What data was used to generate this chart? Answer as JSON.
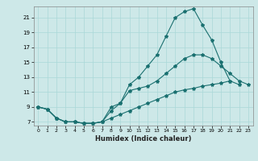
{
  "xlabel": "Humidex (Indice chaleur)",
  "bg_color": "#cde8e8",
  "line_color": "#1a7070",
  "xlim": [
    -0.5,
    23.5
  ],
  "ylim": [
    6.5,
    22.5
  ],
  "xticks": [
    0,
    1,
    2,
    3,
    4,
    5,
    6,
    7,
    8,
    9,
    10,
    11,
    12,
    13,
    14,
    15,
    16,
    17,
    18,
    19,
    20,
    21,
    22,
    23
  ],
  "yticks": [
    7,
    9,
    11,
    13,
    15,
    17,
    19,
    21
  ],
  "line1_x": [
    0,
    1,
    2,
    3,
    4,
    5,
    6,
    7,
    8,
    9,
    10,
    11,
    12,
    13,
    14,
    15,
    16,
    17,
    18,
    19,
    20,
    21,
    22,
    23
  ],
  "line1_y": [
    9.0,
    8.7,
    7.5,
    7.0,
    7.0,
    6.8,
    6.8,
    7.0,
    9.0,
    9.5,
    12.0,
    13.0,
    14.5,
    16.0,
    18.5,
    21.0,
    21.8,
    22.2,
    20.0,
    18.0,
    15.0,
    12.5,
    12.0,
    null
  ],
  "line2_x": [
    0,
    1,
    2,
    3,
    4,
    5,
    6,
    7,
    8,
    9,
    10,
    11,
    12,
    13,
    14,
    15,
    16,
    17,
    18,
    19,
    20,
    21,
    22,
    23
  ],
  "line2_y": [
    9.0,
    8.7,
    7.5,
    7.0,
    7.0,
    6.8,
    6.8,
    7.0,
    8.5,
    9.5,
    11.2,
    11.5,
    11.8,
    12.5,
    13.5,
    14.5,
    15.5,
    16.0,
    16.0,
    15.5,
    14.5,
    13.5,
    12.5,
    12.0
  ],
  "line3_x": [
    0,
    1,
    2,
    3,
    4,
    5,
    6,
    7,
    8,
    9,
    10,
    11,
    12,
    13,
    14,
    15,
    16,
    17,
    18,
    19,
    20,
    21,
    22,
    23
  ],
  "line3_y": [
    9.0,
    8.7,
    7.5,
    7.0,
    7.0,
    6.8,
    6.8,
    7.0,
    7.5,
    8.0,
    8.5,
    9.0,
    9.5,
    10.0,
    10.5,
    11.0,
    11.3,
    11.5,
    11.8,
    12.0,
    12.2,
    12.5,
    null,
    null
  ]
}
